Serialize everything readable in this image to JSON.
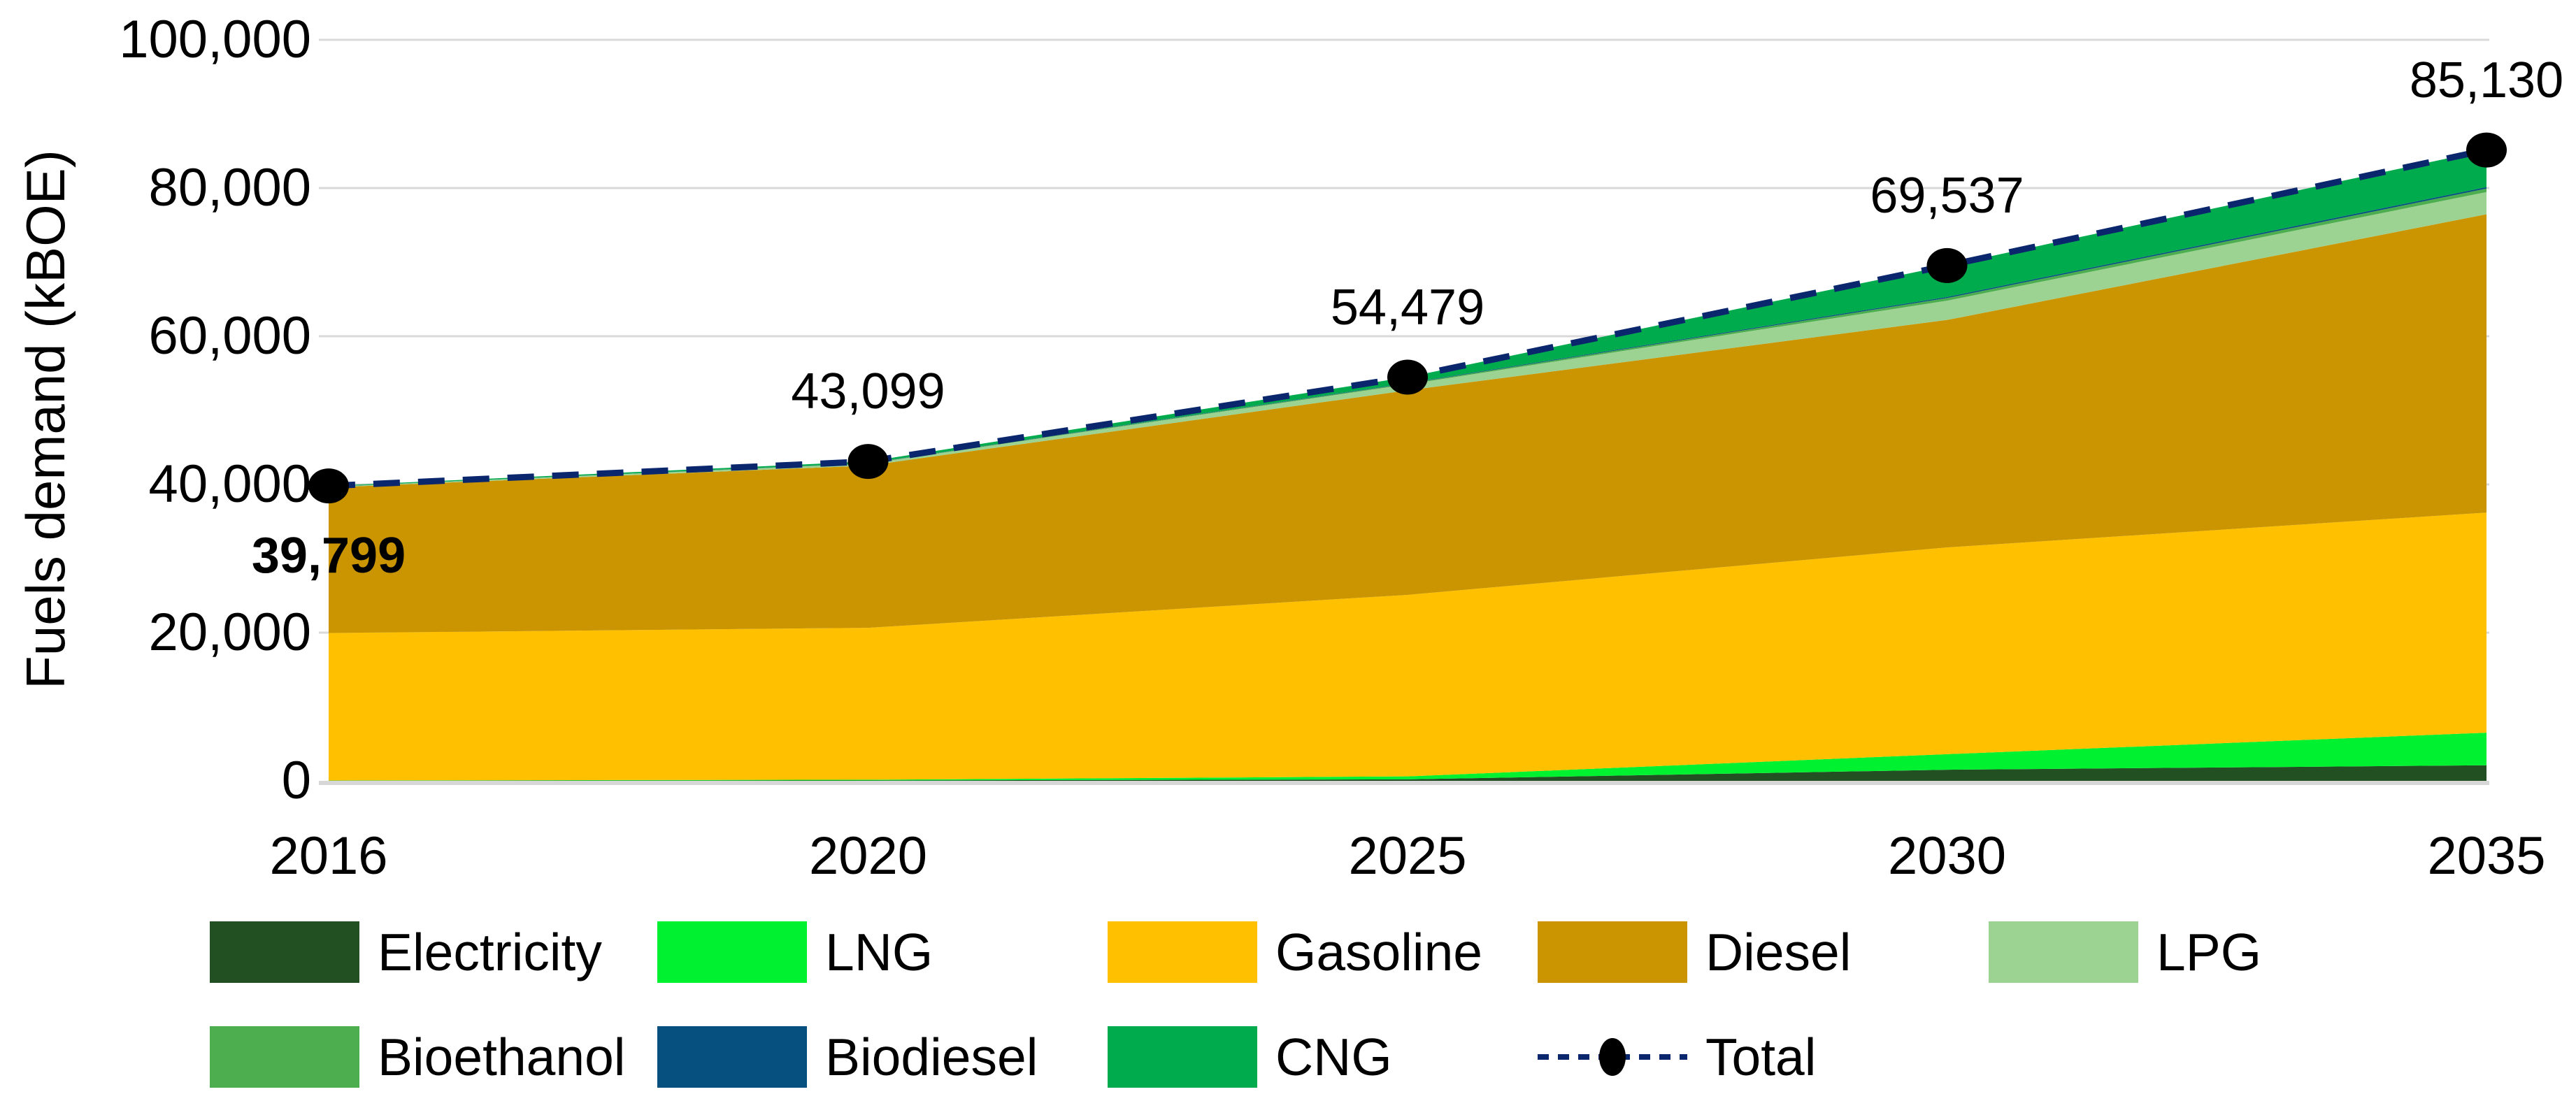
{
  "colors": {
    "background": "#FFFFFF",
    "gridline": "#D9D9D9",
    "axis_line": "#D7D7D7",
    "text": "#000000",
    "total_marker": "#000000"
  },
  "chart_data": {
    "type": "area",
    "stacked": true,
    "title": "",
    "xlabel": "",
    "ylabel": "Fuels demand (kBOE)",
    "categories": [
      "2016",
      "2020",
      "2025",
      "2030",
      "2035"
    ],
    "ylim": [
      0,
      100000
    ],
    "y_tick_interval": 20000,
    "y_ticks": [
      "0",
      "20,000",
      "40,000",
      "60,000",
      "80,000",
      "100,000"
    ],
    "grid": "horizontal",
    "legend_position": "bottom",
    "series": [
      {
        "name": "Electricity",
        "color": "#235023",
        "values": [
          20,
          50,
          200,
          1500,
          2100
        ]
      },
      {
        "name": "LNG",
        "color": "#00F12F",
        "values": [
          30,
          100,
          400,
          2100,
          4400
        ]
      },
      {
        "name": "Gasoline",
        "color": "#FFC000",
        "values": [
          19900,
          20500,
          24500,
          27900,
          29700
        ]
      },
      {
        "name": "Diesel",
        "color": "#CB9502",
        "values": [
          19650,
          21900,
          27600,
          30700,
          40260
        ]
      },
      {
        "name": "LPG",
        "color": "#9DD392",
        "values": [
          80,
          250,
          800,
          2600,
          3000
        ]
      },
      {
        "name": "Bioethanol",
        "color": "#4CAE4F",
        "values": [
          20,
          50,
          120,
          350,
          470
        ]
      },
      {
        "name": "Biodiesel",
        "color": "#05507F",
        "values": [
          9,
          30,
          60,
          150,
          200
        ]
      },
      {
        "name": "CNG",
        "color": "#00AB4E",
        "values": [
          90,
          219,
          799,
          4237,
          5000
        ]
      }
    ],
    "total_series": {
      "name": "Total",
      "color": "#0A266C",
      "line_style": "dashed",
      "marker": "filled-circle",
      "marker_color": "#000000",
      "values": [
        39799,
        43099,
        54479,
        69537,
        85130
      ],
      "labels": [
        "39,799",
        "43,099",
        "54,479",
        "69,537",
        "85,130"
      ],
      "labels_bold": [
        true,
        false,
        false,
        false,
        false
      ]
    },
    "legend_rows": [
      [
        "Electricity",
        "LNG",
        "Gasoline",
        "Diesel",
        "LPG"
      ],
      [
        "Bioethanol",
        "Biodiesel",
        "CNG",
        "Total"
      ]
    ]
  }
}
